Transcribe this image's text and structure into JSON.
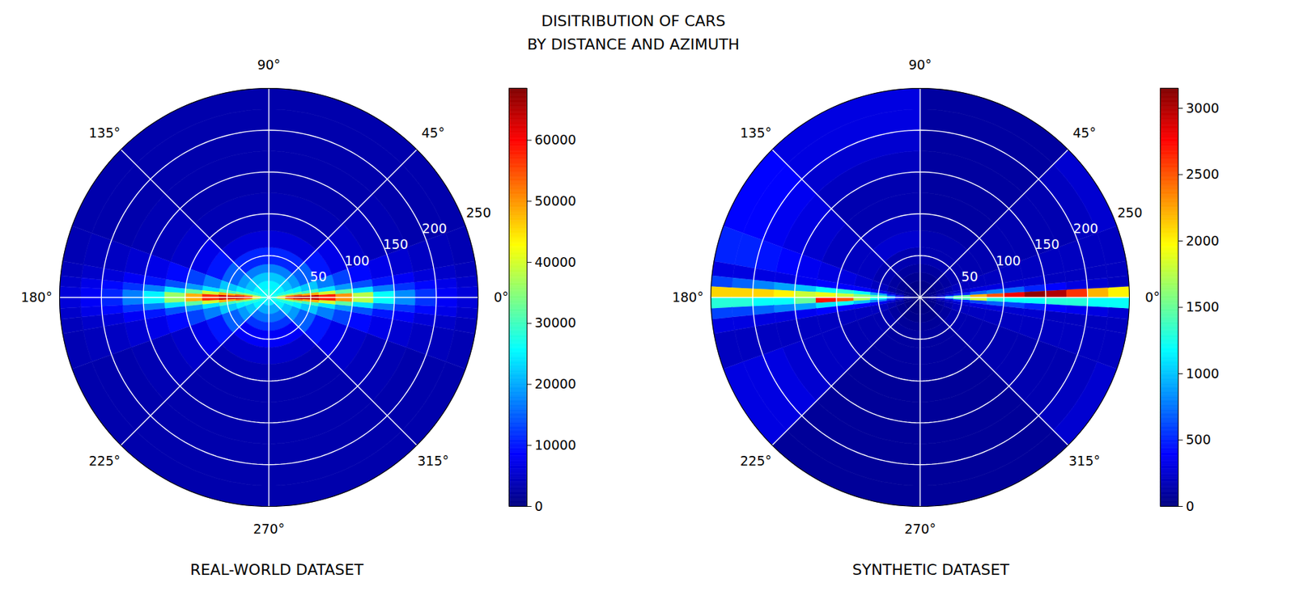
{
  "title": "DISITRIBUTION OF CARS",
  "subtitle": "BY DISTANCE AND AZIMUTH",
  "chart_data": [
    {
      "type": "polar_heatmap",
      "title": "REAL-WORLD DATASET",
      "grid": true,
      "azimuth_bins": [
        0,
        3,
        6,
        10,
        20,
        45,
        90,
        135,
        160,
        170,
        174,
        177,
        180,
        183,
        186,
        190,
        200,
        225,
        270,
        315,
        340,
        350,
        354,
        357,
        360
      ],
      "distance_bins": [
        0,
        10,
        20,
        30,
        40,
        60,
        80,
        100,
        125,
        150,
        175,
        200,
        225,
        250
      ],
      "values": [
        [
          32000,
          50000,
          62000,
          65000,
          64000,
          58000,
          50000,
          38000,
          26000,
          18000,
          12000,
          8000,
          6000
        ],
        [
          30000,
          42000,
          50000,
          52000,
          48000,
          40000,
          32000,
          24000,
          17000,
          12000,
          9000,
          7000,
          5000
        ],
        [
          28000,
          34000,
          36000,
          34000,
          30000,
          24000,
          19000,
          14000,
          10000,
          8000,
          6000,
          5000,
          4000
        ],
        [
          27000,
          28000,
          27000,
          25000,
          22000,
          17000,
          13000,
          9000,
          7000,
          5500,
          4500,
          4000,
          3500
        ],
        [
          26000,
          25000,
          22000,
          19000,
          15000,
          10000,
          7000,
          5000,
          4000,
          3500,
          3000,
          3000,
          3000
        ],
        [
          27000,
          25000,
          22000,
          17000,
          11000,
          6000,
          4000,
          3500,
          3000,
          3000,
          3000,
          3000,
          3000
        ],
        [
          27000,
          25000,
          22000,
          17000,
          11000,
          6000,
          4000,
          3500,
          3000,
          3000,
          3000,
          3000,
          3000
        ],
        [
          26000,
          25000,
          22000,
          19000,
          15000,
          10000,
          7000,
          5000,
          4000,
          3500,
          3000,
          3000,
          3000
        ],
        [
          27000,
          28000,
          27000,
          25000,
          22000,
          17000,
          13000,
          9000,
          7000,
          5500,
          4500,
          4000,
          3500
        ],
        [
          28000,
          34000,
          36000,
          34000,
          30000,
          24000,
          19000,
          14000,
          10000,
          8000,
          6000,
          5000,
          4000
        ],
        [
          30000,
          42000,
          50000,
          52000,
          48000,
          40000,
          32000,
          24000,
          17000,
          12000,
          9000,
          7000,
          5000
        ],
        [
          32000,
          48000,
          60000,
          64000,
          63000,
          57000,
          48000,
          36000,
          25000,
          17000,
          11000,
          8000,
          6000
        ],
        [
          32000,
          48000,
          60000,
          64000,
          63000,
          57000,
          48000,
          36000,
          25000,
          17000,
          11000,
          8000,
          6000
        ],
        [
          30000,
          42000,
          50000,
          52000,
          48000,
          40000,
          32000,
          24000,
          17000,
          12000,
          9000,
          7000,
          5000
        ],
        [
          28000,
          34000,
          36000,
          34000,
          30000,
          24000,
          19000,
          14000,
          10000,
          8000,
          6000,
          5000,
          4000
        ],
        [
          27000,
          28000,
          27000,
          25000,
          22000,
          17000,
          13000,
          9000,
          7000,
          5500,
          4500,
          4000,
          3500
        ],
        [
          26000,
          25000,
          22000,
          19000,
          15000,
          10000,
          7000,
          5000,
          4000,
          3500,
          3000,
          3000,
          3000
        ],
        [
          24000,
          20000,
          16000,
          12000,
          8000,
          5000,
          3500,
          3000,
          3000,
          3000,
          3000,
          3000,
          3000
        ],
        [
          24000,
          20000,
          16000,
          12000,
          8000,
          5000,
          3500,
          3000,
          3000,
          3000,
          3000,
          3000,
          3000
        ],
        [
          26000,
          25000,
          22000,
          19000,
          15000,
          10000,
          7000,
          5000,
          4000,
          3500,
          3000,
          3000,
          3000
        ],
        [
          27000,
          28000,
          27000,
          25000,
          22000,
          17000,
          13000,
          9000,
          7000,
          5500,
          4500,
          4000,
          3500
        ],
        [
          28000,
          34000,
          36000,
          34000,
          30000,
          24000,
          19000,
          14000,
          10000,
          8000,
          6000,
          5000,
          4000
        ],
        [
          30000,
          42000,
          50000,
          52000,
          48000,
          40000,
          32000,
          24000,
          17000,
          12000,
          9000,
          7000,
          5000
        ],
        [
          32000,
          50000,
          62000,
          65000,
          64000,
          58000,
          50000,
          38000,
          26000,
          18000,
          12000,
          8000,
          6000
        ]
      ],
      "rlim": [
        0,
        250
      ],
      "rticks": [
        50,
        100,
        150,
        200,
        250
      ],
      "angle_ticks": [
        {
          "value": 0,
          "label": "0°"
        },
        {
          "value": 45,
          "label": "45°"
        },
        {
          "value": 90,
          "label": "90°"
        },
        {
          "value": 135,
          "label": "135°"
        },
        {
          "value": 180,
          "label": "180°"
        },
        {
          "value": 225,
          "label": "225°"
        },
        {
          "value": 270,
          "label": "270°"
        },
        {
          "value": 315,
          "label": "315°"
        }
      ],
      "colorbar": {
        "range": [
          0,
          68500
        ],
        "ticks": [
          0,
          10000,
          20000,
          30000,
          40000,
          50000,
          60000
        ]
      }
    },
    {
      "type": "polar_heatmap",
      "title": "SYNTHETIC DATASET",
      "grid": true,
      "azimuth_bins": [
        0,
        3,
        6,
        10,
        20,
        45,
        90,
        135,
        160,
        170,
        174,
        177,
        180,
        183,
        186,
        190,
        200,
        225,
        270,
        315,
        340,
        350,
        354,
        357,
        360
      ],
      "distance_bins": [
        0,
        10,
        20,
        30,
        40,
        60,
        80,
        100,
        125,
        150,
        175,
        200,
        225,
        250
      ],
      "values": [
        [
          50,
          200,
          500,
          900,
          1500,
          2200,
          2500,
          2800,
          3100,
          3000,
          2600,
          2200,
          2000
        ],
        [
          30,
          100,
          200,
          300,
          500,
          700,
          800,
          700,
          500,
          400,
          300,
          250,
          200
        ],
        [
          20,
          80,
          150,
          200,
          250,
          300,
          300,
          250,
          250,
          200,
          200,
          200,
          200
        ],
        [
          20,
          50,
          100,
          150,
          200,
          200,
          200,
          200,
          200,
          200,
          200,
          200,
          200
        ],
        [
          10,
          40,
          80,
          100,
          150,
          150,
          150,
          150,
          150,
          150,
          150,
          200,
          250
        ],
        [
          10,
          30,
          60,
          100,
          150,
          150,
          120,
          100,
          100,
          100,
          100,
          100,
          100
        ],
        [
          10,
          30,
          60,
          100,
          150,
          250,
          200,
          150,
          150,
          200,
          250,
          300,
          300
        ],
        [
          10,
          30,
          60,
          100,
          150,
          200,
          200,
          200,
          250,
          300,
          350,
          400,
          400
        ],
        [
          10,
          30,
          80,
          120,
          200,
          250,
          300,
          300,
          350,
          400,
          450,
          500,
          500
        ],
        [
          20,
          60,
          150,
          250,
          350,
          400,
          400,
          400,
          350,
          300,
          300,
          300,
          300
        ],
        [
          20,
          100,
          300,
          500,
          900,
          1200,
          1300,
          1200,
          1000,
          900,
          800,
          700,
          600
        ],
        [
          30,
          150,
          400,
          900,
          1400,
          1600,
          1800,
          1900,
          1800,
          2000,
          2100,
          2100,
          2100
        ],
        [
          30,
          150,
          400,
          800,
          1200,
          1700,
          2500,
          2700,
          1500,
          1200,
          1200,
          1300,
          1300
        ],
        [
          20,
          100,
          300,
          500,
          800,
          1000,
          1200,
          1100,
          900,
          800,
          700,
          600,
          600
        ],
        [
          20,
          60,
          150,
          250,
          350,
          400,
          400,
          400,
          350,
          300,
          300,
          300,
          300
        ],
        [
          10,
          40,
          100,
          150,
          200,
          200,
          200,
          200,
          200,
          200,
          200,
          200,
          200
        ],
        [
          10,
          30,
          60,
          100,
          150,
          150,
          150,
          200,
          200,
          250,
          300,
          300,
          300
        ],
        [
          10,
          20,
          40,
          80,
          100,
          100,
          100,
          80,
          80,
          80,
          80,
          80,
          80
        ],
        [
          10,
          20,
          40,
          80,
          100,
          100,
          100,
          80,
          80,
          80,
          80,
          80,
          80
        ],
        [
          10,
          40,
          80,
          100,
          150,
          150,
          150,
          150,
          150,
          150,
          150,
          200,
          250
        ],
        [
          20,
          50,
          100,
          150,
          200,
          200,
          200,
          200,
          200,
          200,
          200,
          200,
          200
        ],
        [
          20,
          80,
          150,
          200,
          250,
          300,
          300,
          250,
          250,
          200,
          200,
          200,
          200
        ],
        [
          30,
          100,
          200,
          300,
          500,
          600,
          700,
          600,
          500,
          400,
          350,
          300,
          250
        ],
        [
          50,
          200,
          400,
          800,
          1400,
          1800,
          1300,
          1200,
          1200,
          1300,
          1300,
          1200,
          1200
        ]
      ],
      "rlim": [
        0,
        250
      ],
      "rticks": [
        50,
        100,
        150,
        200,
        250
      ],
      "angle_ticks": [
        {
          "value": 0,
          "label": "0°"
        },
        {
          "value": 45,
          "label": "45°"
        },
        {
          "value": 90,
          "label": "90°"
        },
        {
          "value": 135,
          "label": "135°"
        },
        {
          "value": 180,
          "label": "180°"
        },
        {
          "value": 225,
          "label": "225°"
        },
        {
          "value": 270,
          "label": "270°"
        },
        {
          "value": 315,
          "label": "315°"
        }
      ],
      "colorbar": {
        "range": [
          0,
          3150
        ],
        "ticks": [
          0,
          500,
          1000,
          1500,
          2000,
          2500,
          3000
        ]
      }
    }
  ]
}
